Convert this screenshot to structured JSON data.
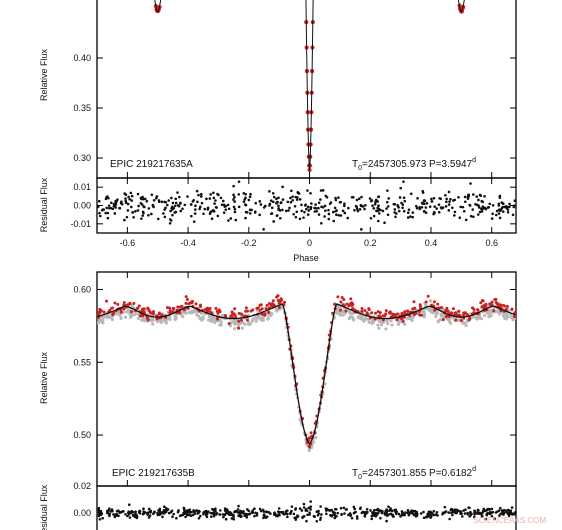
{
  "chart_data": [
    {
      "type": "scatter",
      "panel": "EPIC 219217635A light curve",
      "annotation_left": "EPIC 219217635A",
      "annotation_right": {
        "t0": "2457305.973",
        "period": "3.5947",
        "unit": "d"
      },
      "ylabel": "Relative Flux",
      "xlim": [
        -0.7,
        0.68
      ],
      "ylim": [
        0.28,
        0.46
      ],
      "yticks": [
        "0.40",
        "0.35",
        "0.30"
      ],
      "ytick_values": [
        0.4,
        0.35,
        0.3
      ],
      "eclipse": {
        "center": 0.0,
        "depth_min": 0.288,
        "secondary_phases": [
          -0.5,
          0.5
        ],
        "secondary_min": 0.446
      },
      "series": [
        {
          "name": "",
          "color": "#cc2020",
          "style": "points",
          "values_note": ""
        },
        {
          "name": "",
          "color": "#111111",
          "style": "line"
        }
      ]
    },
    {
      "type": "scatter",
      "panel": "EPIC 219217635A residuals",
      "ylabel": "Residual Flux",
      "xlabel": "Phase",
      "xlim": [
        -0.7,
        0.68
      ],
      "ylim": [
        -0.015,
        0.015
      ],
      "yticks": [
        "0.01",
        "0.00",
        "-0.01"
      ],
      "ytick_values": [
        0.01,
        0.0,
        -0.01
      ],
      "xticks": [
        "-0.6",
        "-0.4",
        "-0.2",
        "0",
        "0.2",
        "0.4",
        "0.6"
      ],
      "xtick_values": [
        -0.6,
        -0.4,
        -0.2,
        0.0,
        0.2,
        0.4,
        0.6
      ],
      "scatter_sd": 0.004
    },
    {
      "type": "scatter",
      "panel": "EPIC 219217635B light curve",
      "annotation_left": "EPIC 219217635B",
      "annotation_right": {
        "t0": "2457301.855",
        "period": "0.6182",
        "unit": "d"
      },
      "ylabel": "Relative Flux",
      "xlim": [
        -0.7,
        0.68
      ],
      "ylim": [
        0.465,
        0.612
      ],
      "yticks": [
        "0.60",
        "0.55",
        "0.50"
      ],
      "ytick_values": [
        0.6,
        0.55,
        0.5
      ],
      "model": {
        "baseline_max": 0.594,
        "primary_min": 0.49,
        "secondary_min": 0.566
      },
      "series": [
        {
          "name": "",
          "color": "#b8b8b8",
          "style": "points"
        },
        {
          "name": "",
          "color": "#cc2020",
          "style": "points"
        },
        {
          "name": "",
          "color": "#111111",
          "style": "line"
        }
      ]
    },
    {
      "type": "scatter",
      "panel": "EPIC 219217635B residuals",
      "ylabel": "Residual Flux",
      "xlim": [
        -0.7,
        0.68
      ],
      "ylim": [
        -0.02,
        0.02
      ],
      "yticks": [
        "0.02",
        "0.00"
      ],
      "ytick_values": [
        0.02,
        0.0
      ]
    }
  ],
  "watermark": "SCIENCEAAS.COM",
  "colors": {
    "model": "#111111",
    "data": "#cc2020",
    "data_alt": "#b8b8b8",
    "residual": "#111111"
  }
}
